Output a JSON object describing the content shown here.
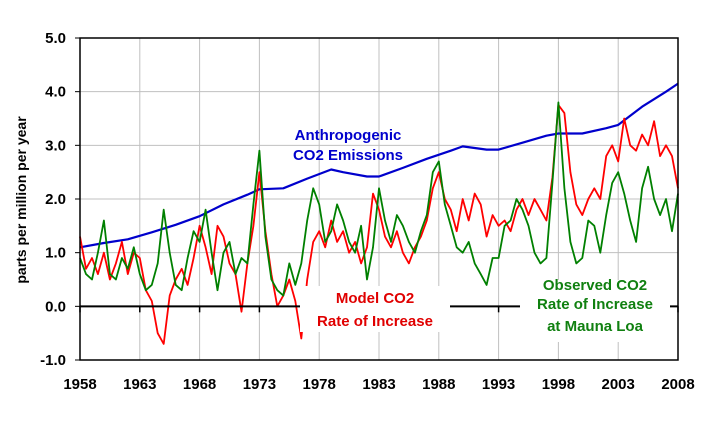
{
  "chart_data": {
    "type": "line",
    "title": "",
    "xlabel": "",
    "ylabel": "parts per million per year",
    "xlim": [
      1958,
      2008
    ],
    "ylim": [
      -1.0,
      5.0
    ],
    "grid": true,
    "x_ticks": [
      "1958",
      "1963",
      "1968",
      "1973",
      "1978",
      "1983",
      "1988",
      "1993",
      "1998",
      "2003",
      "2008"
    ],
    "y_ticks": [
      "5.0",
      "4.0",
      "3.0",
      "2.0",
      "1.0",
      "0.0",
      "-1.0"
    ],
    "series": [
      {
        "name": "Anthropogenic CO2 Emissions",
        "color": "#0000cc",
        "x": [
          1958,
          1960,
          1962,
          1964,
          1966,
          1968,
          1970,
          1972,
          1973,
          1975,
          1977,
          1979,
          1980,
          1982,
          1983,
          1985,
          1987,
          1989,
          1990,
          1992,
          1993,
          1995,
          1997,
          1998,
          2000,
          2002,
          2003,
          2005,
          2007,
          2008
        ],
        "values": [
          1.1,
          1.18,
          1.25,
          1.38,
          1.52,
          1.68,
          1.9,
          2.08,
          2.18,
          2.2,
          2.38,
          2.55,
          2.5,
          2.42,
          2.42,
          2.58,
          2.75,
          2.9,
          2.98,
          2.92,
          2.92,
          3.05,
          3.18,
          3.22,
          3.22,
          3.32,
          3.38,
          3.72,
          4.0,
          4.15
        ]
      },
      {
        "name": "Model CO2 Rate of Increase",
        "color": "#ff0000",
        "x": [
          1958,
          1958.5,
          1959,
          1959.5,
          1960,
          1960.5,
          1961,
          1961.5,
          1962,
          1962.5,
          1963,
          1963.5,
          1964,
          1964.5,
          1965,
          1965.5,
          1966,
          1966.5,
          1967,
          1967.5,
          1968,
          1968.5,
          1969,
          1969.5,
          1970,
          1970.5,
          1971,
          1971.5,
          1972,
          1972.5,
          1973,
          1973.5,
          1974,
          1974.5,
          1975,
          1975.5,
          1976,
          1976.5,
          1977,
          1977.5,
          1978,
          1978.5,
          1979,
          1979.5,
          1980,
          1980.5,
          1981,
          1981.5,
          1982,
          1982.5,
          1983,
          1983.5,
          1984,
          1984.5,
          1985,
          1985.5,
          1986,
          1986.5,
          1987,
          1987.5,
          1988,
          1988.5,
          1989,
          1989.5,
          1990,
          1990.5,
          1991,
          1991.5,
          1992,
          1992.5,
          1993,
          1993.5,
          1994,
          1994.5,
          1995,
          1995.5,
          1996,
          1996.5,
          1997,
          1997.5,
          1998,
          1998.5,
          1999,
          1999.5,
          2000,
          2000.5,
          2001,
          2001.5,
          2002,
          2002.5,
          2003,
          2003.5,
          2004,
          2004.5,
          2005,
          2005.5,
          2006,
          2006.5,
          2007,
          2007.5,
          2008
        ],
        "values": [
          1.3,
          0.7,
          0.9,
          0.6,
          1.0,
          0.5,
          0.8,
          1.2,
          0.6,
          1.0,
          0.9,
          0.3,
          0.1,
          -0.5,
          -0.7,
          0.2,
          0.5,
          0.7,
          0.4,
          0.9,
          1.5,
          1.1,
          0.6,
          1.5,
          1.3,
          0.8,
          0.6,
          -0.1,
          0.8,
          1.5,
          2.5,
          1.4,
          0.6,
          0.0,
          0.2,
          0.5,
          0.1,
          -0.6,
          0.5,
          1.2,
          1.4,
          1.1,
          1.6,
          1.2,
          1.4,
          1.0,
          1.2,
          0.8,
          1.1,
          2.1,
          1.8,
          1.3,
          1.1,
          1.4,
          1.0,
          0.8,
          1.1,
          1.3,
          1.6,
          2.2,
          2.5,
          2.0,
          1.8,
          1.4,
          2.0,
          1.6,
          2.1,
          1.9,
          1.3,
          1.7,
          1.5,
          1.6,
          1.4,
          1.8,
          2.0,
          1.7,
          2.0,
          1.8,
          1.6,
          2.4,
          3.75,
          3.6,
          2.5,
          1.9,
          1.7,
          2.0,
          2.2,
          2.0,
          2.8,
          3.0,
          2.7,
          3.5,
          3.0,
          2.9,
          3.2,
          3.0,
          3.45,
          2.8,
          3.0,
          2.8,
          2.2
        ]
      },
      {
        "name": "Observed CO2 Rate of Increase at Mauna Loa",
        "color": "#008000",
        "x": [
          1958,
          1958.5,
          1959,
          1959.5,
          1960,
          1960.5,
          1961,
          1961.5,
          1962,
          1962.5,
          1963,
          1963.5,
          1964,
          1964.5,
          1965,
          1965.5,
          1966,
          1966.5,
          1967,
          1967.5,
          1968,
          1968.5,
          1969,
          1969.5,
          1970,
          1970.5,
          1971,
          1971.5,
          1972,
          1972.5,
          1973,
          1973.5,
          1974,
          1974.5,
          1975,
          1975.5,
          1976,
          1976.5,
          1977,
          1977.5,
          1978,
          1978.5,
          1979,
          1979.5,
          1980,
          1980.5,
          1981,
          1981.5,
          1982,
          1982.5,
          1983,
          1983.5,
          1984,
          1984.5,
          1985,
          1985.5,
          1986,
          1986.5,
          1987,
          1987.5,
          1988,
          1988.5,
          1989,
          1989.5,
          1990,
          1990.5,
          1991,
          1991.5,
          1992,
          1992.5,
          1993,
          1993.5,
          1994,
          1994.5,
          1995,
          1995.5,
          1996,
          1996.5,
          1997,
          1997.5,
          1998,
          1998.5,
          1999,
          1999.5,
          2000,
          2000.5,
          2001,
          2001.5,
          2002,
          2002.5,
          2003,
          2003.5,
          2004,
          2004.5,
          2005,
          2005.5,
          2006,
          2006.5,
          2007,
          2007.5,
          2008
        ],
        "values": [
          0.9,
          0.6,
          0.5,
          1.0,
          1.6,
          0.6,
          0.5,
          0.9,
          0.7,
          1.1,
          0.6,
          0.3,
          0.4,
          0.8,
          1.8,
          1.0,
          0.4,
          0.3,
          0.9,
          1.4,
          1.2,
          1.8,
          1.0,
          0.3,
          1.0,
          1.2,
          0.6,
          0.9,
          0.8,
          1.9,
          2.9,
          1.3,
          0.5,
          0.3,
          0.2,
          0.8,
          0.4,
          0.8,
          1.6,
          2.2,
          1.9,
          1.2,
          1.4,
          1.9,
          1.6,
          1.2,
          1.0,
          1.5,
          0.5,
          1.1,
          2.2,
          1.6,
          1.2,
          1.7,
          1.5,
          1.2,
          1.0,
          1.4,
          1.7,
          2.5,
          2.7,
          1.9,
          1.5,
          1.1,
          1.0,
          1.2,
          0.8,
          0.6,
          0.4,
          0.9,
          0.9,
          1.5,
          1.6,
          2.0,
          1.8,
          1.5,
          1.0,
          0.8,
          0.9,
          2.3,
          3.8,
          2.2,
          1.2,
          0.8,
          0.9,
          1.6,
          1.5,
          1.0,
          1.7,
          2.3,
          2.5,
          2.1,
          1.6,
          1.2,
          2.2,
          2.6,
          2.0,
          1.7,
          2.0,
          1.4,
          2.1
        ]
      }
    ],
    "annotations": [
      {
        "text_lines": [
          "Anthropogenic",
          "CO2 Emissions"
        ],
        "color": "#0000cc",
        "series": "Anthropogenic CO2 Emissions"
      },
      {
        "text_lines": [
          "Model CO2",
          "Rate of Increase"
        ],
        "color": "#e00000",
        "series": "Model CO2 Rate of Increase"
      },
      {
        "text_lines": [
          "Observed CO2",
          "Rate of Increase",
          "at Mauna Loa"
        ],
        "color": "#108010",
        "series": "Observed CO2 Rate of Increase at Mauna Loa"
      }
    ],
    "legend": "none (inline labels)"
  },
  "labels": {
    "ylabel": "parts per million per year",
    "anthro_1": "Anthropogenic",
    "anthro_2": "CO2 Emissions",
    "model_1": "Model CO2",
    "model_2": "Rate of Increase",
    "obs_1": "Observed CO2",
    "obs_2": "Rate of Increase",
    "obs_3": "at Mauna Loa"
  }
}
